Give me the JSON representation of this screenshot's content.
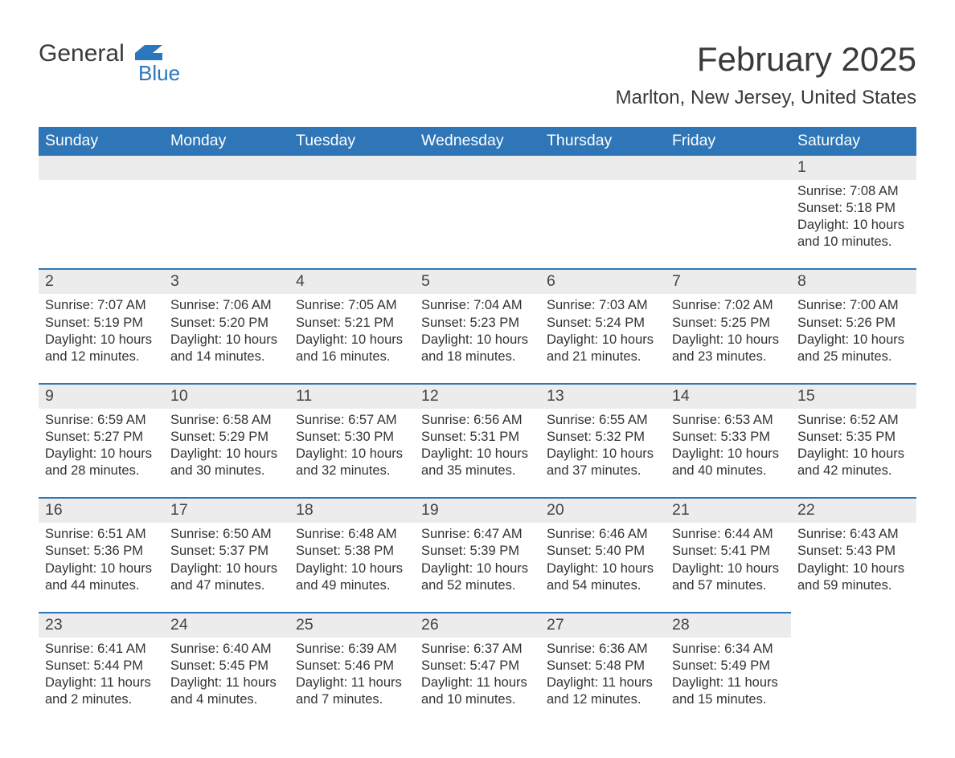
{
  "brand": {
    "part1": "General",
    "part2": "Blue",
    "logo_color": "#2b76bd"
  },
  "title": "February 2025",
  "location": "Marlton, New Jersey, United States",
  "colors": {
    "header_bg": "#2f76b8",
    "header_text": "#ffffff",
    "daynum_bg": "#ececec",
    "border_top": "#2f76b8",
    "text": "#333333",
    "title_text": "#3a3a3a",
    "page_bg": "#ffffff"
  },
  "fonts": {
    "title_size_pt": 42,
    "location_size_pt": 24,
    "header_size_pt": 19.5,
    "daynum_size_pt": 19.5,
    "body_size_pt": 16.5
  },
  "day_labels": [
    "Sunday",
    "Monday",
    "Tuesday",
    "Wednesday",
    "Thursday",
    "Friday",
    "Saturday"
  ],
  "labels": {
    "sunrise": "Sunrise:",
    "sunset": "Sunset:",
    "daylight": "Daylight:"
  },
  "weeks": [
    [
      null,
      null,
      null,
      null,
      null,
      null,
      {
        "n": "1",
        "sunrise": "7:08 AM",
        "sunset": "5:18 PM",
        "day_h": 10,
        "day_m": 10
      }
    ],
    [
      {
        "n": "2",
        "sunrise": "7:07 AM",
        "sunset": "5:19 PM",
        "day_h": 10,
        "day_m": 12
      },
      {
        "n": "3",
        "sunrise": "7:06 AM",
        "sunset": "5:20 PM",
        "day_h": 10,
        "day_m": 14
      },
      {
        "n": "4",
        "sunrise": "7:05 AM",
        "sunset": "5:21 PM",
        "day_h": 10,
        "day_m": 16
      },
      {
        "n": "5",
        "sunrise": "7:04 AM",
        "sunset": "5:23 PM",
        "day_h": 10,
        "day_m": 18
      },
      {
        "n": "6",
        "sunrise": "7:03 AM",
        "sunset": "5:24 PM",
        "day_h": 10,
        "day_m": 21
      },
      {
        "n": "7",
        "sunrise": "7:02 AM",
        "sunset": "5:25 PM",
        "day_h": 10,
        "day_m": 23
      },
      {
        "n": "8",
        "sunrise": "7:00 AM",
        "sunset": "5:26 PM",
        "day_h": 10,
        "day_m": 25
      }
    ],
    [
      {
        "n": "9",
        "sunrise": "6:59 AM",
        "sunset": "5:27 PM",
        "day_h": 10,
        "day_m": 28
      },
      {
        "n": "10",
        "sunrise": "6:58 AM",
        "sunset": "5:29 PM",
        "day_h": 10,
        "day_m": 30
      },
      {
        "n": "11",
        "sunrise": "6:57 AM",
        "sunset": "5:30 PM",
        "day_h": 10,
        "day_m": 32
      },
      {
        "n": "12",
        "sunrise": "6:56 AM",
        "sunset": "5:31 PM",
        "day_h": 10,
        "day_m": 35
      },
      {
        "n": "13",
        "sunrise": "6:55 AM",
        "sunset": "5:32 PM",
        "day_h": 10,
        "day_m": 37
      },
      {
        "n": "14",
        "sunrise": "6:53 AM",
        "sunset": "5:33 PM",
        "day_h": 10,
        "day_m": 40
      },
      {
        "n": "15",
        "sunrise": "6:52 AM",
        "sunset": "5:35 PM",
        "day_h": 10,
        "day_m": 42
      }
    ],
    [
      {
        "n": "16",
        "sunrise": "6:51 AM",
        "sunset": "5:36 PM",
        "day_h": 10,
        "day_m": 44
      },
      {
        "n": "17",
        "sunrise": "6:50 AM",
        "sunset": "5:37 PM",
        "day_h": 10,
        "day_m": 47
      },
      {
        "n": "18",
        "sunrise": "6:48 AM",
        "sunset": "5:38 PM",
        "day_h": 10,
        "day_m": 49
      },
      {
        "n": "19",
        "sunrise": "6:47 AM",
        "sunset": "5:39 PM",
        "day_h": 10,
        "day_m": 52
      },
      {
        "n": "20",
        "sunrise": "6:46 AM",
        "sunset": "5:40 PM",
        "day_h": 10,
        "day_m": 54
      },
      {
        "n": "21",
        "sunrise": "6:44 AM",
        "sunset": "5:41 PM",
        "day_h": 10,
        "day_m": 57
      },
      {
        "n": "22",
        "sunrise": "6:43 AM",
        "sunset": "5:43 PM",
        "day_h": 10,
        "day_m": 59
      }
    ],
    [
      {
        "n": "23",
        "sunrise": "6:41 AM",
        "sunset": "5:44 PM",
        "day_h": 11,
        "day_m": 2
      },
      {
        "n": "24",
        "sunrise": "6:40 AM",
        "sunset": "5:45 PM",
        "day_h": 11,
        "day_m": 4
      },
      {
        "n": "25",
        "sunrise": "6:39 AM",
        "sunset": "5:46 PM",
        "day_h": 11,
        "day_m": 7
      },
      {
        "n": "26",
        "sunrise": "6:37 AM",
        "sunset": "5:47 PM",
        "day_h": 11,
        "day_m": 10
      },
      {
        "n": "27",
        "sunrise": "6:36 AM",
        "sunset": "5:48 PM",
        "day_h": 11,
        "day_m": 12
      },
      {
        "n": "28",
        "sunrise": "6:34 AM",
        "sunset": "5:49 PM",
        "day_h": 11,
        "day_m": 15
      },
      null
    ]
  ]
}
